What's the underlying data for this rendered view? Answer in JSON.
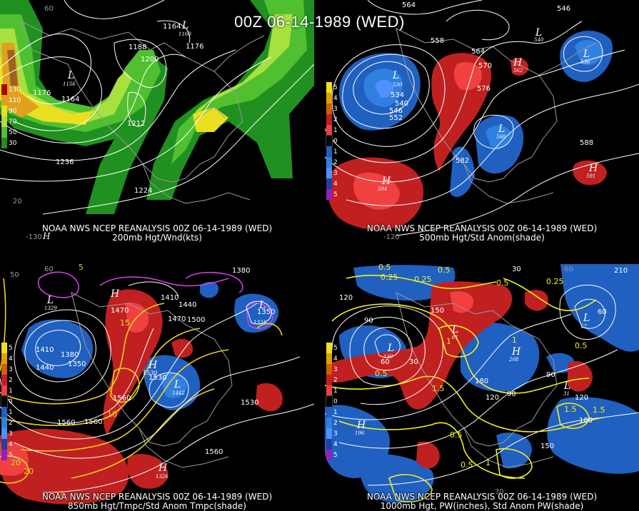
{
  "title": "00Z 06-14-1989 (WED)",
  "panels": [
    {
      "line1": "NOAA NWS NCEP REANALYSIS 00Z 06-14-1989 (WED)",
      "line2": "200mb Hgt/Wnd(kts)",
      "legend": [
        {
          "label": "130",
          "color": "#b00000"
        },
        {
          "label": "110",
          "color": "#e0a020"
        },
        {
          "label": "90",
          "color": "#e8e020"
        },
        {
          "label": "70",
          "color": "#a8e040"
        },
        {
          "label": "50",
          "color": "#50c030"
        },
        {
          "label": "30",
          "color": "#209020"
        }
      ],
      "contour_labels": [
        "1164",
        "1176",
        "1188",
        "1200",
        "1212",
        "1224",
        "1236",
        "1164",
        "1176"
      ],
      "centers": [
        "L",
        "1156",
        "L",
        "1160",
        "H"
      ],
      "axis_labels": [
        "20",
        "60",
        "-130"
      ]
    },
    {
      "line1": "NOAA NWS NCEP REANALYSIS 00Z 06-14-1989 (WED)",
      "line2": "500mb Hgt/Std Anom(shade)",
      "legend": [
        {
          "label": "5",
          "color": "#f0e020"
        },
        {
          "label": "4",
          "color": "#e0a000"
        },
        {
          "label": "3",
          "color": "#d06000"
        },
        {
          "label": "2",
          "color": "#c02020"
        },
        {
          "label": "1",
          "color": "#f04040"
        },
        {
          "label": "0",
          "color": "#000000"
        },
        {
          "label": "1",
          "color": "#2060c0"
        },
        {
          "label": "2",
          "color": "#3080e0"
        },
        {
          "label": "3",
          "color": "#5090ff"
        },
        {
          "label": "4",
          "color": "#2040a0"
        },
        {
          "label": "5",
          "color": "#9020c0"
        }
      ],
      "contour_labels": [
        "564",
        "546",
        "558",
        "564",
        "570",
        "576",
        "582",
        "588",
        "534",
        "540",
        "546",
        "552"
      ],
      "centers": [
        "L",
        "530",
        "L",
        "560",
        "H",
        "594",
        "H",
        "591",
        "H",
        "562",
        "L",
        "540",
        "L",
        "536"
      ],
      "axis_labels": [
        "-120"
      ]
    },
    {
      "line1": "NOAA NWS NCEP REANALYSIS 00Z 06-14-1989 (WED)",
      "line2": "850mb Hgt/Tmpc/Std Anom Tmpc(shade)",
      "legend": [
        {
          "label": "5",
          "color": "#f0e020"
        },
        {
          "label": "4",
          "color": "#e0a000"
        },
        {
          "label": "3",
          "color": "#d06000"
        },
        {
          "label": "2",
          "color": "#c02020"
        },
        {
          "label": "1",
          "color": "#f04040"
        },
        {
          "label": "0",
          "color": "#000000"
        },
        {
          "label": "1",
          "color": "#2060c0"
        },
        {
          "label": "2",
          "color": "#3080e0"
        },
        {
          "label": "3",
          "color": "#5090ff"
        },
        {
          "label": "4",
          "color": "#2040a0"
        },
        {
          "label": "5",
          "color": "#9020c0"
        }
      ],
      "contour_labels": [
        "1380",
        "1410",
        "1440",
        "1470",
        "1500",
        "1530",
        "1560",
        "1380",
        "1350",
        "1350",
        "1410",
        "1440",
        "1470",
        "1530",
        "1560",
        "1560",
        "1560"
      ],
      "temp_labels": [
        "5",
        "15",
        "10",
        "20",
        "20",
        "10"
      ],
      "centers": [
        "L",
        "1329",
        "L",
        "1442",
        "H",
        "H",
        "1530",
        "L",
        "1324",
        "H",
        "1326"
      ],
      "axis_labels": [
        "50",
        "20",
        "60"
      ]
    },
    {
      "line1": "NOAA NWS NCEP REANALYSIS 00Z 06-14-1989 (WED)",
      "line2": "1000mb Hgt, PW(inches), Std Anom PW(shade)",
      "legend": [
        {
          "label": "5",
          "color": "#f0e020"
        },
        {
          "label": "4",
          "color": "#e0a000"
        },
        {
          "label": "3",
          "color": "#d06000"
        },
        {
          "label": "2",
          "color": "#c02020"
        },
        {
          "label": "1",
          "color": "#f04040"
        },
        {
          "label": "0",
          "color": "#000000"
        },
        {
          "label": "1",
          "color": "#2060c0"
        },
        {
          "label": "2",
          "color": "#3080e0"
        },
        {
          "label": "3",
          "color": "#5090ff"
        },
        {
          "label": "4",
          "color": "#2040a0"
        },
        {
          "label": "5",
          "color": "#9020c0"
        }
      ],
      "contour_labels": [
        "120",
        "90",
        "60",
        "30",
        "150",
        "180",
        "210",
        "30",
        "60",
        "90",
        "120",
        "150",
        "180",
        "120",
        "90"
      ],
      "pw_labels": [
        "0.5",
        "0.25",
        "0.5",
        "0.25",
        "0.5",
        "0.25",
        "0.5",
        "1",
        "1.5",
        "1",
        "0.5",
        "1.5",
        "1",
        "0.5",
        "0.5",
        "1.5"
      ],
      "centers": [
        "L",
        "130",
        "L",
        "61",
        "H",
        "208",
        "H",
        "196",
        "L",
        "57",
        "L",
        "31"
      ],
      "axis_labels": [
        "60",
        "30"
      ]
    }
  ],
  "colors": {
    "background": "#000000",
    "contour": "#ffffff",
    "coast": "#9a9a9a",
    "temp_contour": "#f0d020",
    "cold_contour": "#d040e0"
  }
}
